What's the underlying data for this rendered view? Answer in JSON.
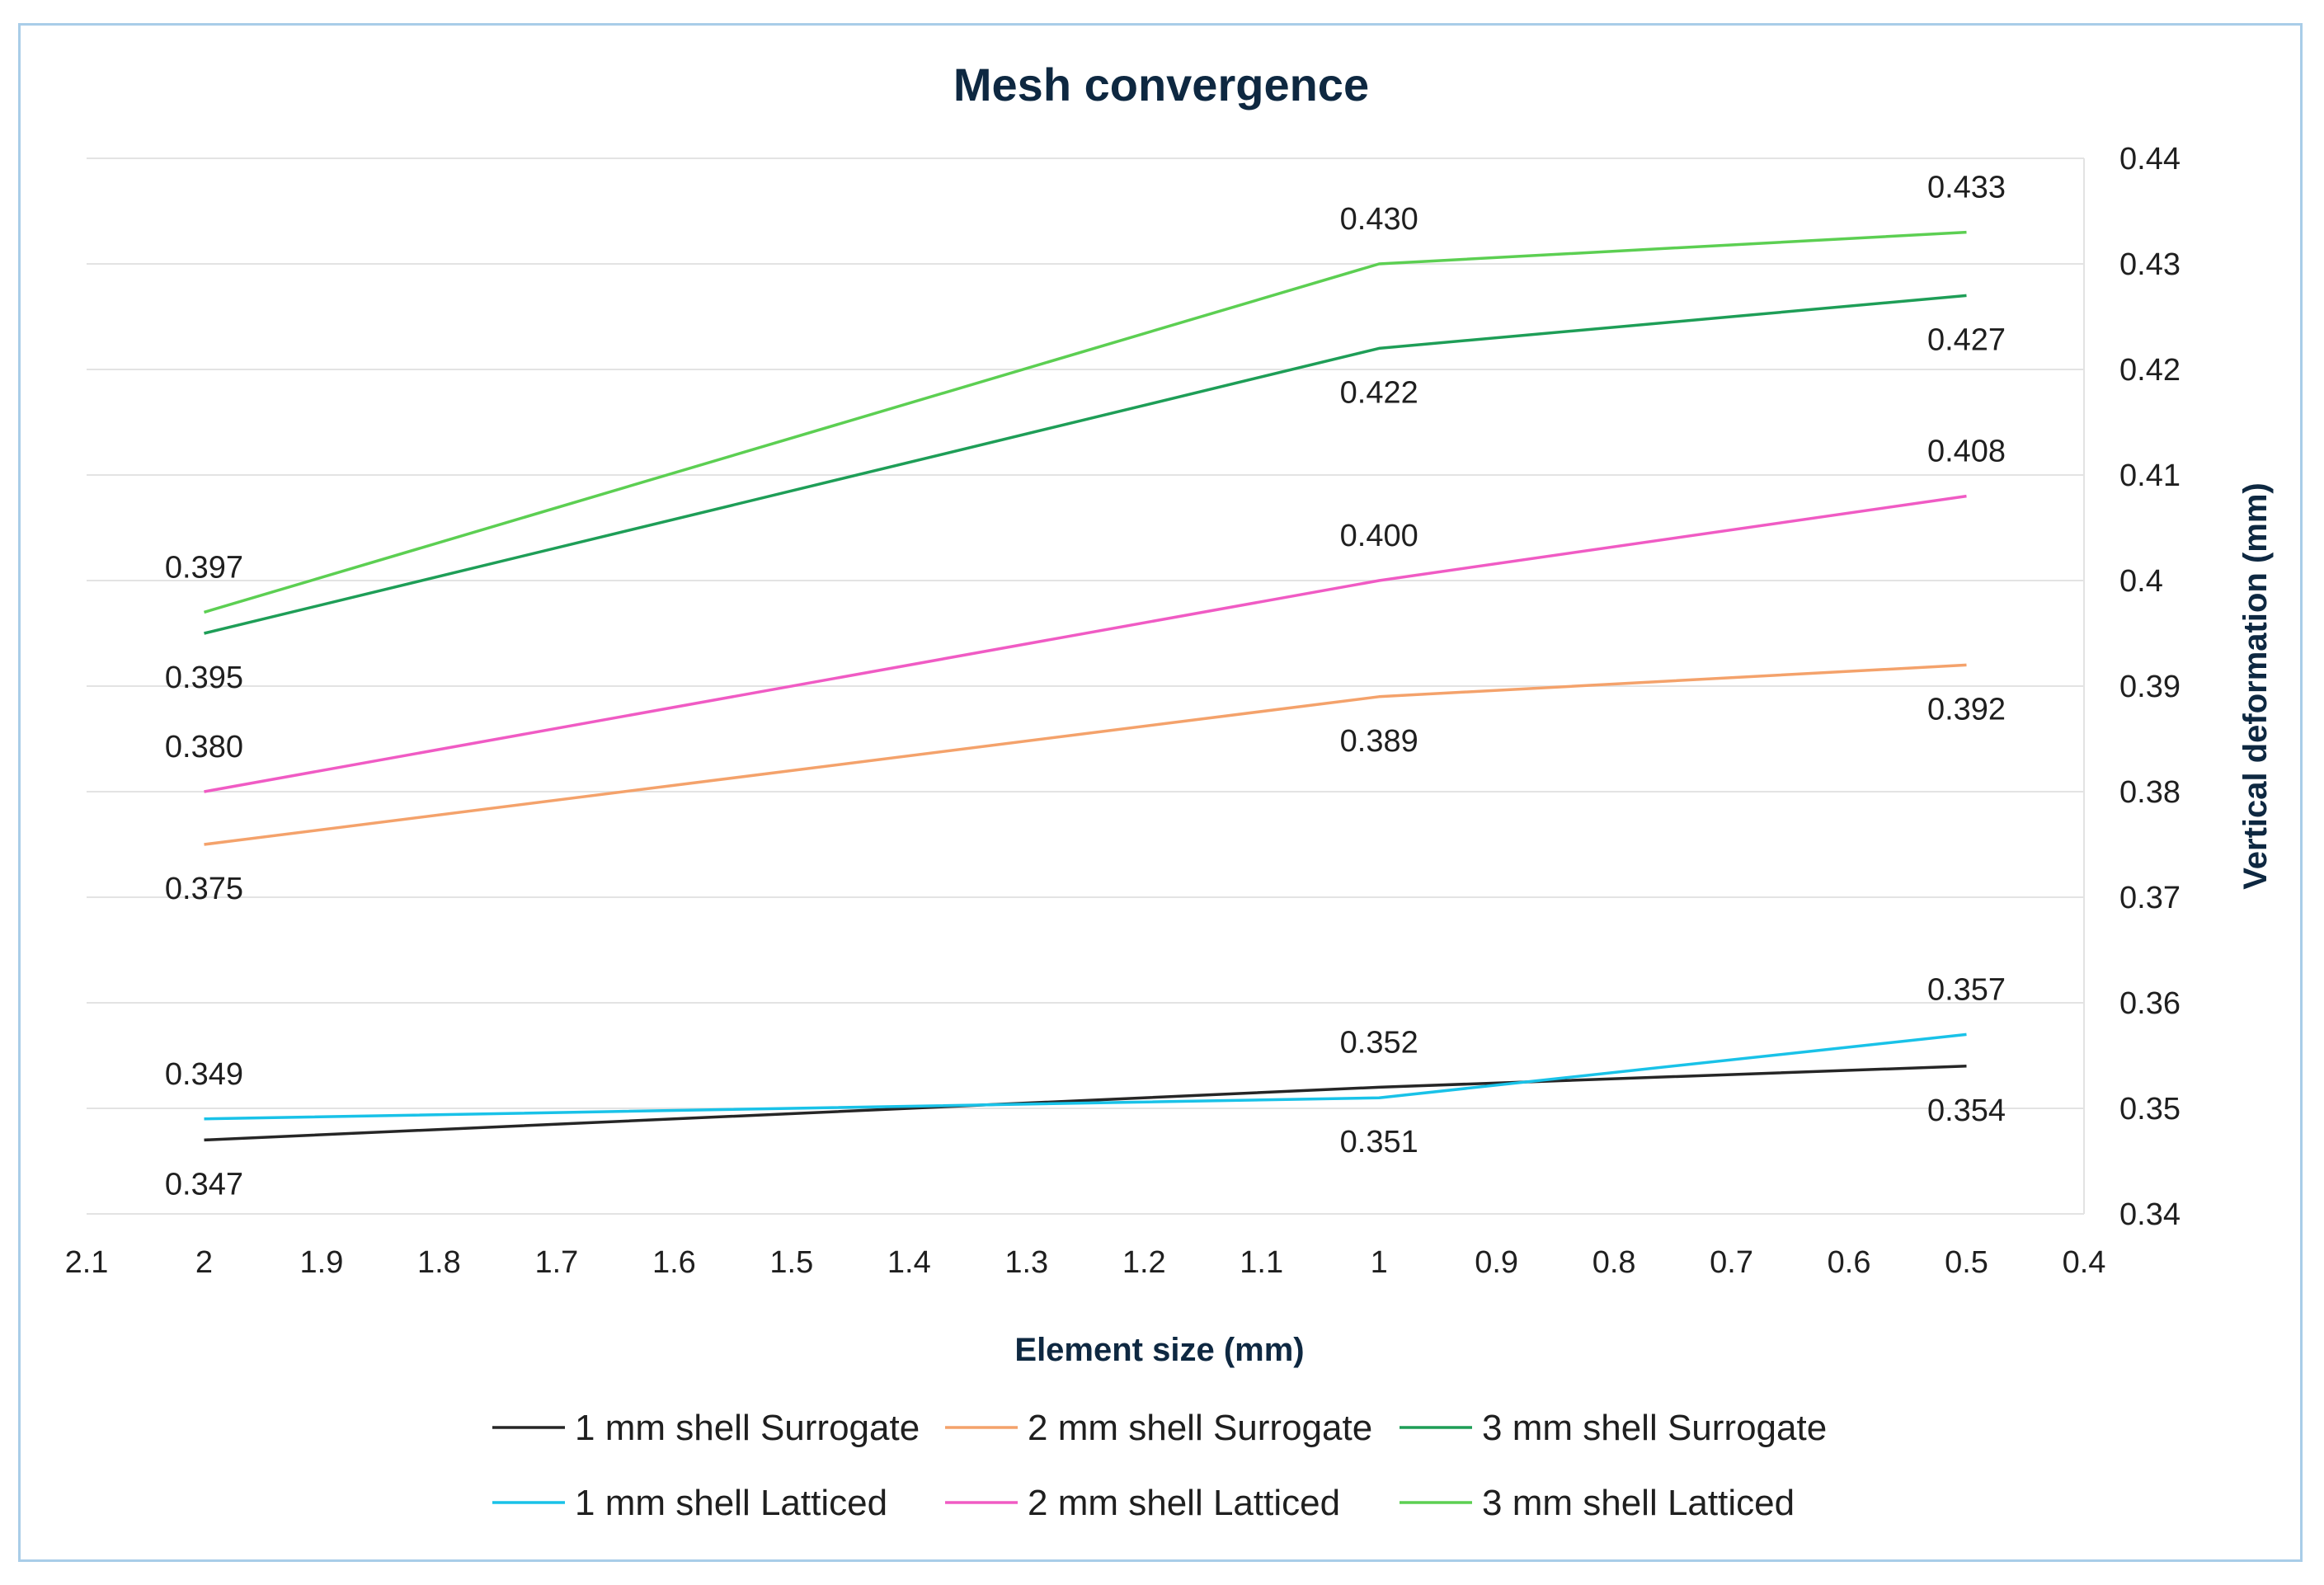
{
  "chart_data": {
    "type": "line",
    "title": "Mesh convergence",
    "xlabel": "Element size (mm)",
    "ylabel": "Vertical deformation (mm)",
    "xlim": [
      2.1,
      0.4
    ],
    "x_reversed": true,
    "ylim": [
      0.34,
      0.44
    ],
    "y_axis_side": "right",
    "grid": "horizontal",
    "legend_position": "bottom",
    "x_ticks": [
      "2.1",
      "2",
      "1.9",
      "1.8",
      "1.7",
      "1.6",
      "1.5",
      "1.4",
      "1.3",
      "1.2",
      "1.1",
      "1",
      "0.9",
      "0.8",
      "0.7",
      "0.6",
      "0.5",
      "0.4"
    ],
    "y_ticks": [
      "0.34",
      "0.35",
      "0.36",
      "0.37",
      "0.38",
      "0.39",
      "0.4",
      "0.41",
      "0.42",
      "0.43",
      "0.44"
    ],
    "x": [
      2,
      1,
      0.5
    ],
    "series": [
      {
        "name": "1 mm shell Surrogate",
        "color": "#262626",
        "values": [
          0.347,
          0.352,
          0.354
        ],
        "labels": [
          "0.347",
          "0.352",
          "0.354"
        ],
        "label_pos": [
          "below",
          "above",
          "below"
        ]
      },
      {
        "name": "2 mm shell Surrogate",
        "color": "#f4a26b",
        "values": [
          0.375,
          0.389,
          0.392
        ],
        "labels": [
          "0.375",
          "0.389",
          "0.392"
        ],
        "label_pos": [
          "below",
          "below",
          "below"
        ]
      },
      {
        "name": "3 mm shell Surrogate",
        "color": "#1e9e57",
        "values": [
          0.395,
          0.422,
          0.427
        ],
        "labels": [
          "0.395",
          "0.422",
          "0.427"
        ],
        "label_pos": [
          "below",
          "below",
          "below"
        ]
      },
      {
        "name": "1 mm shell Latticed",
        "color": "#19c2e8",
        "values": [
          0.349,
          0.351,
          0.357
        ],
        "labels": [
          "0.349",
          "0.351",
          "0.357"
        ],
        "label_pos": [
          "above",
          "below",
          "above"
        ]
      },
      {
        "name": "2 mm shell Latticed",
        "color": "#f05bc4",
        "values": [
          0.38,
          0.4,
          0.408
        ],
        "labels": [
          "0.380",
          "0.400",
          "0.408"
        ],
        "label_pos": [
          "above",
          "above",
          "above"
        ]
      },
      {
        "name": "3 mm shell Latticed",
        "color": "#5ccf52",
        "values": [
          0.397,
          0.43,
          0.433
        ],
        "labels": [
          "0.397",
          "0.430",
          "0.433"
        ],
        "label_pos": [
          "above",
          "above",
          "above"
        ]
      }
    ]
  }
}
